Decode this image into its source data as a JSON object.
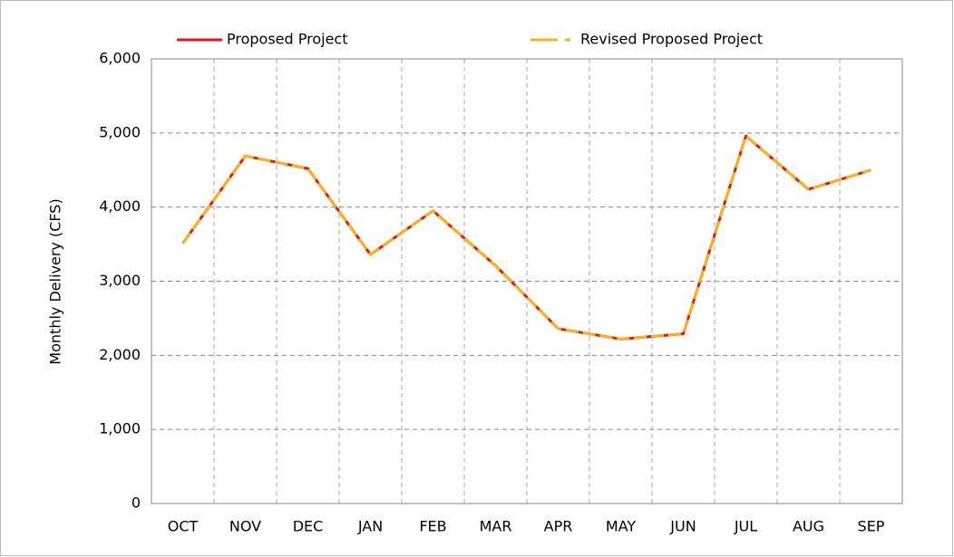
{
  "chart_data": {
    "type": "line",
    "ylabel": "Monthly Delivery (CFS)",
    "categories": [
      "OCT",
      "NOV",
      "DEC",
      "JAN",
      "FEB",
      "MAR",
      "APR",
      "MAY",
      "JUN",
      "JUL",
      "AUG",
      "SEP"
    ],
    "series": [
      {
        "name": "Proposed Project",
        "color": "#e8141c",
        "dash": false,
        "values": [
          3510,
          4690,
          4520,
          3360,
          3950,
          3210,
          2360,
          2220,
          2290,
          4960,
          4240,
          4500
        ]
      },
      {
        "name": "Revised Proposed Project",
        "color": "#f5b31c",
        "dash": true,
        "values": [
          3510,
          4690,
          4520,
          3360,
          3950,
          3210,
          2360,
          2220,
          2290,
          4960,
          4240,
          4500
        ]
      }
    ],
    "ylim": [
      0,
      6000
    ],
    "yticks": [
      0,
      {
        "value": 1000,
        "label": "1,000"
      },
      {
        "value": 2000,
        "label": "2,000"
      },
      {
        "value": 3000,
        "label": "3,000"
      },
      {
        "value": 4000,
        "label": "4,000"
      },
      {
        "value": 5000,
        "label": "5,000"
      },
      {
        "value": 6000,
        "label": "6,000"
      }
    ],
    "grid": true,
    "legend": "top"
  }
}
